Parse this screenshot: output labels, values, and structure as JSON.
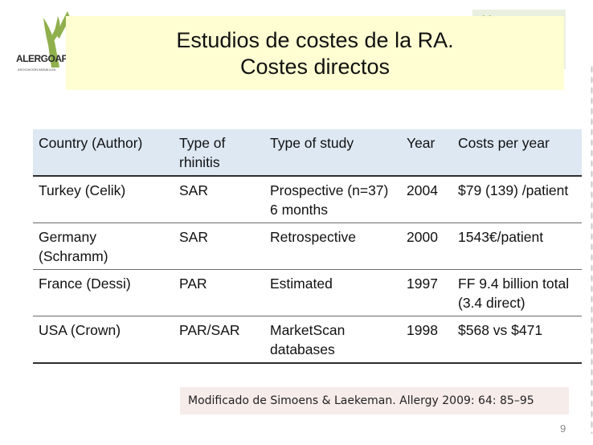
{
  "logo": {
    "name": "ALERGOAF",
    "subtitle": "ASOCIACIÓN ANDALUZA"
  },
  "title": {
    "line1": "Estudios de costes de la RA.",
    "line2": "Costes directos"
  },
  "table": {
    "headers": [
      "Country (Author)",
      "Type of rhinitis",
      "Type of study",
      "Year",
      "Costs per year"
    ],
    "rows": [
      [
        "Turkey (Celik)",
        "SAR",
        "Prospective (n=37) 6 months",
        "2004",
        "$79 (139) /patient"
      ],
      [
        "Germany (Schramm)",
        "SAR",
        "Retrospective",
        "2000",
        "1543€/patient"
      ],
      [
        "France (Dessi)",
        "PAR",
        "Estimated",
        "1997",
        "FF 9.4 billion total (3.4 direct)"
      ],
      [
        "USA (Crown)",
        "PAR/SAR",
        "MarketScan databases",
        "1998",
        "$568 vs $471"
      ]
    ]
  },
  "source_note": "Modificado de Simoens & Laekeman. Allergy 2009: 64: 85–95",
  "page_number": "9",
  "colors": {
    "title_bg": "#fefed2",
    "header_bg": "#dde8f3",
    "source_bg": "#f6ecea",
    "logo_green": "#8fb04c"
  }
}
